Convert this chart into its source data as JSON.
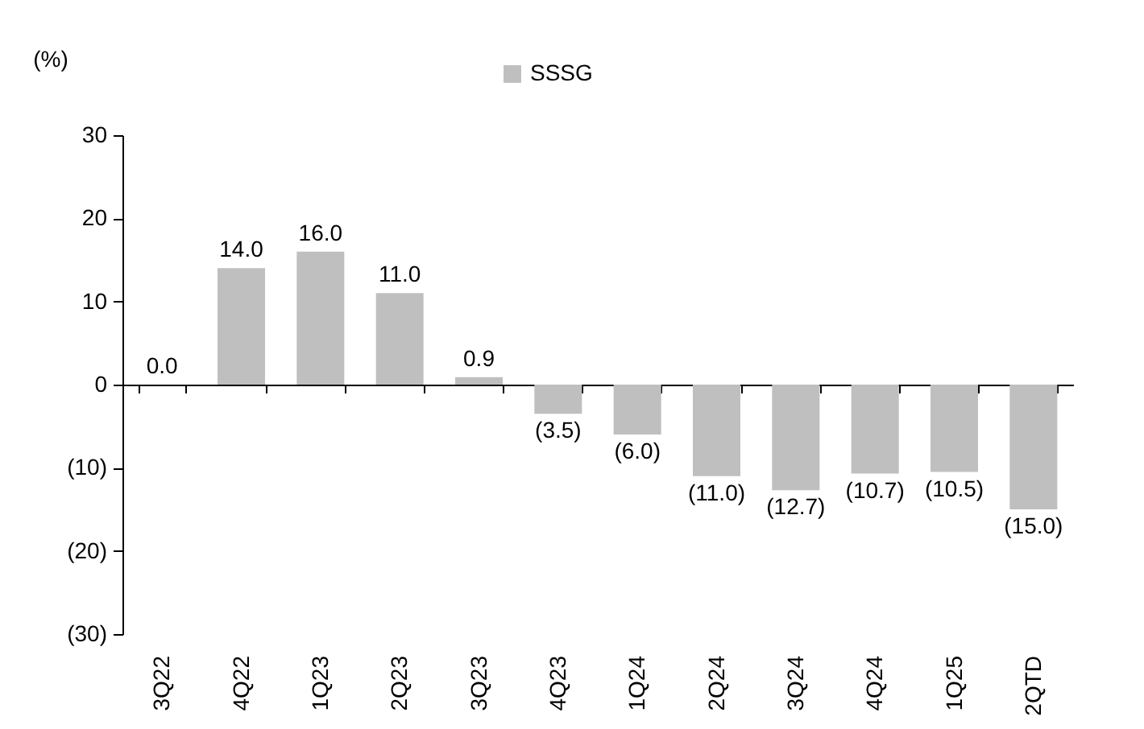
{
  "chart_data": {
    "type": "bar",
    "ylabel": "(%)",
    "categories": [
      "3Q22",
      "4Q22",
      "1Q23",
      "2Q23",
      "3Q23",
      "4Q23",
      "1Q24",
      "2Q24",
      "3Q24",
      "4Q24",
      "1Q25",
      "2QTD"
    ],
    "series": [
      {
        "name": "SSSG",
        "color": "#bfbfbf",
        "values": [
          0.0,
          14.0,
          16.0,
          11.0,
          0.9,
          -3.5,
          -6.0,
          -11.0,
          -12.7,
          -10.7,
          -10.5,
          -15.0
        ],
        "value_labels": [
          "0.0",
          "14.0",
          "16.0",
          "11.0",
          "0.9",
          "(3.5)",
          "(6.0)",
          "(11.0)",
          "(12.7)",
          "(10.7)",
          "(10.5)",
          "(15.0)"
        ]
      }
    ],
    "ylim": [
      -30,
      30
    ],
    "yticks": [
      {
        "value": -30,
        "label": "(30)"
      },
      {
        "value": -20,
        "label": "(20)"
      },
      {
        "value": -10,
        "label": "(10)"
      },
      0,
      10,
      20,
      30
    ],
    "legend": "top"
  }
}
